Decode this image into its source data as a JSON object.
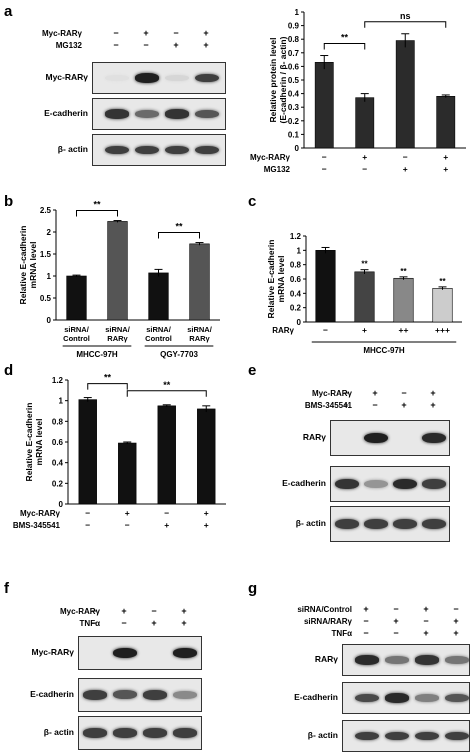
{
  "panels": {
    "a": "a",
    "b": "b",
    "c": "c",
    "d": "d",
    "e": "e",
    "f": "f",
    "g": "g"
  },
  "blot_a": {
    "conditions": [
      {
        "label": "Myc-RARγ",
        "signs": [
          "−",
          "+",
          "−",
          "+"
        ]
      },
      {
        "label": "MG132",
        "signs": [
          "−",
          "−",
          "+",
          "+"
        ]
      }
    ],
    "rows": [
      {
        "label": "Myc-RARγ",
        "intensity": [
          0.05,
          0.95,
          0.1,
          0.8
        ]
      },
      {
        "label": "E-cadherin",
        "intensity": [
          0.85,
          0.6,
          0.85,
          0.7
        ]
      },
      {
        "label": "β- actin",
        "intensity": [
          0.8,
          0.8,
          0.8,
          0.8
        ]
      }
    ]
  },
  "blot_e": {
    "conditions": [
      {
        "label": "Myc-RARγ",
        "signs": [
          "−",
          "+",
          "−",
          "+"
        ]
      },
      {
        "label": "BMS-345541",
        "signs": [
          "−",
          "−",
          "+",
          "+"
        ]
      }
    ],
    "rows": [
      {
        "label": "RARγ",
        "intensity": [
          0.0,
          0.95,
          0.0,
          0.9
        ]
      },
      {
        "label": "E-cadherin",
        "intensity": [
          0.85,
          0.4,
          0.9,
          0.8
        ]
      },
      {
        "label": "β- actin",
        "intensity": [
          0.8,
          0.8,
          0.8,
          0.8
        ]
      }
    ]
  },
  "blot_f": {
    "conditions": [
      {
        "label": "Myc-RARγ",
        "signs": [
          "−",
          "+",
          "−",
          "+"
        ]
      },
      {
        "label": "TNFα",
        "signs": [
          "−",
          "−",
          "+",
          "+"
        ]
      }
    ],
    "rows": [
      {
        "label": "Myc-RARγ",
        "intensity": [
          0.0,
          0.95,
          0.0,
          0.95
        ]
      },
      {
        "label": "E-cadherin",
        "intensity": [
          0.8,
          0.7,
          0.8,
          0.45
        ]
      },
      {
        "label": "β- actin",
        "intensity": [
          0.8,
          0.8,
          0.8,
          0.8
        ]
      }
    ]
  },
  "blot_g": {
    "conditions": [
      {
        "label": "siRNA/Control",
        "signs": [
          "+",
          "−",
          "+",
          "−"
        ]
      },
      {
        "label": "siRNA/RARγ",
        "signs": [
          "−",
          "+",
          "−",
          "+"
        ]
      },
      {
        "label": "TNFα",
        "signs": [
          "−",
          "−",
          "+",
          "+"
        ]
      }
    ],
    "rows": [
      {
        "label": "RARγ",
        "intensity": [
          0.9,
          0.55,
          0.85,
          0.55
        ]
      },
      {
        "label": "E-cadherin",
        "intensity": [
          0.75,
          0.9,
          0.5,
          0.7
        ]
      },
      {
        "label": "β- actin",
        "intensity": [
          0.8,
          0.8,
          0.8,
          0.8
        ]
      }
    ]
  },
  "chart_data": [
    {
      "panel": "a",
      "type": "bar",
      "ylabel": "Relative protein level\n(E-cadherin / β- actin)",
      "ylim": [
        0,
        1
      ],
      "yticks": [
        "0",
        "0.1",
        "0.2",
        "0.3",
        "0.4",
        "0.5",
        "0.6",
        "0.7",
        "0.8",
        "0.9",
        "1"
      ],
      "values": [
        0.63,
        0.37,
        0.79,
        0.38
      ],
      "errors": [
        0.05,
        0.03,
        0.05,
        0.01
      ],
      "colors": [
        "#2b2b2b",
        "#2b2b2b",
        "#2b2b2b",
        "#2b2b2b"
      ],
      "conditions": [
        {
          "label": "Myc-RARγ",
          "signs": [
            "−",
            "+",
            "−",
            "+"
          ]
        },
        {
          "label": "MG132",
          "signs": [
            "−",
            "−",
            "+",
            "+"
          ]
        }
      ],
      "brackets": [
        {
          "from": 0,
          "to": 1,
          "label": "**"
        },
        {
          "from": 1,
          "to": 3,
          "label": "ns"
        }
      ]
    },
    {
      "panel": "b",
      "type": "bar",
      "ylabel": "Relative E-cadherin\nmRNA level",
      "ylim": [
        0,
        2.5
      ],
      "yticks": [
        "0",
        "0.5",
        "1",
        "1.5",
        "2",
        "2.5"
      ],
      "categories": [
        "siRNA/\nControl",
        "siRNA/\nRARγ",
        "siRNA/\nControl",
        "siRNA/\nRARγ"
      ],
      "values": [
        1.0,
        2.24,
        1.07,
        1.73
      ],
      "errors": [
        0.02,
        0.02,
        0.08,
        0.03
      ],
      "colors": [
        "#111111",
        "#555555",
        "#111111",
        "#555555"
      ],
      "groups": [
        "MHCC-97H",
        "QGY-7703"
      ],
      "brackets": [
        {
          "from": 0,
          "to": 1,
          "label": "**"
        },
        {
          "from": 2,
          "to": 3,
          "label": "**"
        }
      ]
    },
    {
      "panel": "c",
      "type": "bar",
      "ylabel": "Relative E-cadherin\nmRNA level",
      "ylim": [
        0,
        1.2
      ],
      "yticks": [
        "0",
        "0.2",
        "0.4",
        "0.6",
        "0.8",
        "1",
        "1.2"
      ],
      "values": [
        1.0,
        0.7,
        0.61,
        0.47
      ],
      "errors": [
        0.04,
        0.03,
        0.02,
        0.02
      ],
      "colors": [
        "#111111",
        "#444444",
        "#888888",
        "#cccccc"
      ],
      "stars": [
        "",
        "**",
        "**",
        "**"
      ],
      "conditions": [
        {
          "label": "RARγ",
          "signs": [
            "−",
            "+",
            "++",
            "+++"
          ]
        }
      ],
      "groups": [
        "MHCC-97H"
      ]
    },
    {
      "panel": "d",
      "type": "bar",
      "ylabel": "Relative E-cadherin\nmRNA level",
      "ylim": [
        0,
        1.2
      ],
      "yticks": [
        "0",
        "0.2",
        "0.4",
        "0.6",
        "0.8",
        "1",
        "1.2"
      ],
      "values": [
        1.01,
        0.59,
        0.95,
        0.92
      ],
      "errors": [
        0.02,
        0.01,
        0.01,
        0.03
      ],
      "colors": [
        "#111111",
        "#111111",
        "#111111",
        "#111111"
      ],
      "conditions": [
        {
          "label": "Myc-RARγ",
          "signs": [
            "−",
            "+",
            "−",
            "+"
          ]
        },
        {
          "label": "BMS-345541",
          "signs": [
            "−",
            "−",
            "+",
            "+"
          ]
        }
      ],
      "brackets": [
        {
          "from": 0,
          "to": 1,
          "label": "**"
        },
        {
          "from": 1,
          "to": 3,
          "label": "**"
        }
      ]
    }
  ]
}
